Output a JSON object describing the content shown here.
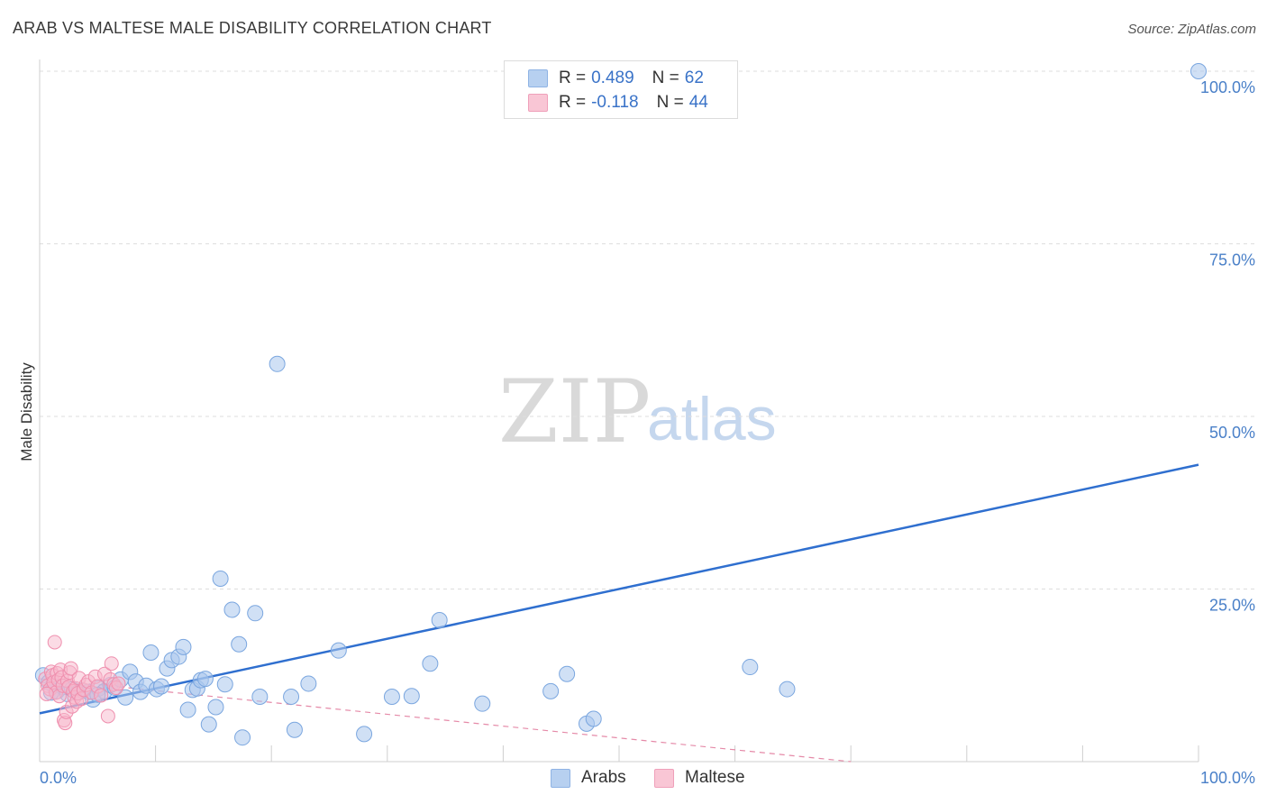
{
  "title": "ARAB VS MALTESE MALE DISABILITY CORRELATION CHART",
  "source": "Source: ZipAtlas.com",
  "watermark": {
    "zip": "ZIP",
    "atlas": "atlas"
  },
  "legend": {
    "rows": [
      {
        "r_label": "R =",
        "r_value": "0.489",
        "n_label": "N =",
        "n_value": "62"
      },
      {
        "r_label": "R =",
        "r_value": "-0.118",
        "n_label": "N =",
        "n_value": "44"
      }
    ]
  },
  "bottom_legend": {
    "arabs": "Arabs",
    "maltese": "Maltese"
  },
  "colors": {
    "arab_fill": "#a9c6ec",
    "arab_stroke": "#7aa6df",
    "arab_line": "#2f6fcf",
    "maltese_fill": "#f7b8cb",
    "maltese_stroke": "#ef8fae",
    "maltese_line": "#e58aa8",
    "tick_text": "#4a80c8"
  },
  "chart_data": {
    "type": "scatter",
    "title": "ARAB VS MALTESE MALE DISABILITY CORRELATION CHART",
    "xlabel": "",
    "ylabel": "Male Disability",
    "xlim": [
      0,
      100
    ],
    "ylim": [
      0,
      100
    ],
    "x_tick_labels": [
      "0.0%",
      "100.0%"
    ],
    "y_tick_labels": [
      "25.0%",
      "50.0%",
      "75.0%",
      "100.0%"
    ],
    "y_tick_values": [
      25,
      50,
      75,
      100
    ],
    "grid": true,
    "legend_position": "top-center",
    "series": [
      {
        "name": "Arabs",
        "r": 0.489,
        "n": 62,
        "trend": {
          "x": [
            0,
            100
          ],
          "y": [
            7.0,
            43.0
          ]
        },
        "points": [
          [
            0.3,
            12.5
          ],
          [
            0.8,
            11.5
          ],
          [
            1.2,
            11.0
          ],
          [
            1.5,
            10.2
          ],
          [
            2.0,
            10.8
          ],
          [
            2.4,
            9.8
          ],
          [
            2.8,
            10.5
          ],
          [
            3.3,
            10.0
          ],
          [
            3.7,
            10.3
          ],
          [
            4.2,
            10.1
          ],
          [
            4.6,
            9.0
          ],
          [
            5.1,
            10.6
          ],
          [
            5.6,
            10.2
          ],
          [
            6.1,
            11.1
          ],
          [
            6.5,
            10.7
          ],
          [
            7.0,
            11.9
          ],
          [
            7.4,
            9.3
          ],
          [
            7.8,
            13.0
          ],
          [
            8.3,
            11.6
          ],
          [
            8.7,
            10.1
          ],
          [
            9.2,
            11.0
          ],
          [
            9.6,
            15.8
          ],
          [
            10.1,
            10.5
          ],
          [
            10.5,
            10.9
          ],
          [
            11.0,
            13.5
          ],
          [
            11.4,
            14.7
          ],
          [
            12.0,
            15.2
          ],
          [
            12.4,
            16.6
          ],
          [
            12.8,
            7.5
          ],
          [
            13.2,
            10.4
          ],
          [
            13.6,
            10.6
          ],
          [
            13.9,
            11.8
          ],
          [
            14.3,
            12.0
          ],
          [
            14.6,
            5.4
          ],
          [
            15.2,
            7.9
          ],
          [
            15.6,
            26.5
          ],
          [
            16.0,
            11.2
          ],
          [
            16.6,
            22.0
          ],
          [
            17.2,
            17.0
          ],
          [
            17.5,
            3.5
          ],
          [
            18.6,
            21.5
          ],
          [
            19.0,
            9.4
          ],
          [
            20.5,
            57.6
          ],
          [
            21.7,
            9.4
          ],
          [
            22.0,
            4.6
          ],
          [
            23.2,
            11.3
          ],
          [
            25.8,
            16.1
          ],
          [
            28.0,
            4.0
          ],
          [
            30.4,
            9.4
          ],
          [
            32.1,
            9.5
          ],
          [
            33.7,
            14.2
          ],
          [
            34.5,
            20.5
          ],
          [
            38.2,
            8.4
          ],
          [
            44.1,
            10.2
          ],
          [
            45.5,
            12.7
          ],
          [
            47.2,
            5.5
          ],
          [
            47.8,
            6.2
          ],
          [
            61.3,
            13.7
          ],
          [
            64.5,
            10.5
          ],
          [
            100.0,
            100.0
          ],
          [
            1.0,
            10.0
          ],
          [
            5.0,
            9.7
          ]
        ]
      },
      {
        "name": "Maltese",
        "r": -0.118,
        "n": 44,
        "trend": {
          "x": [
            0,
            70
          ],
          "y": [
            12.0,
            0.0
          ]
        },
        "points": [
          [
            0.5,
            12.0
          ],
          [
            0.7,
            11.0
          ],
          [
            0.9,
            10.5
          ],
          [
            1.0,
            13.0
          ],
          [
            1.1,
            12.5
          ],
          [
            1.2,
            11.5
          ],
          [
            1.3,
            17.3
          ],
          [
            1.4,
            10.0
          ],
          [
            1.5,
            12.8
          ],
          [
            1.6,
            11.8
          ],
          [
            1.7,
            9.5
          ],
          [
            1.8,
            13.3
          ],
          [
            1.9,
            12.2
          ],
          [
            2.0,
            11.0
          ],
          [
            2.1,
            6.0
          ],
          [
            2.2,
            5.6
          ],
          [
            2.3,
            7.2
          ],
          [
            2.4,
            11.7
          ],
          [
            2.5,
            10.8
          ],
          [
            2.6,
            12.9
          ],
          [
            2.7,
            13.5
          ],
          [
            2.8,
            8.0
          ],
          [
            2.9,
            10.2
          ],
          [
            3.0,
            9.3
          ],
          [
            3.1,
            10.6
          ],
          [
            3.2,
            8.7
          ],
          [
            3.3,
            9.9
          ],
          [
            3.4,
            12.1
          ],
          [
            3.6,
            9.1
          ],
          [
            3.8,
            10.4
          ],
          [
            4.0,
            11.1
          ],
          [
            4.2,
            11.6
          ],
          [
            4.5,
            10.0
          ],
          [
            4.8,
            12.3
          ],
          [
            5.0,
            10.9
          ],
          [
            5.3,
            9.6
          ],
          [
            5.6,
            12.7
          ],
          [
            5.9,
            6.6
          ],
          [
            6.1,
            11.9
          ],
          [
            6.2,
            14.2
          ],
          [
            6.4,
            11.2
          ],
          [
            6.6,
            10.7
          ],
          [
            6.8,
            11.3
          ],
          [
            0.6,
            9.8
          ]
        ]
      }
    ]
  }
}
